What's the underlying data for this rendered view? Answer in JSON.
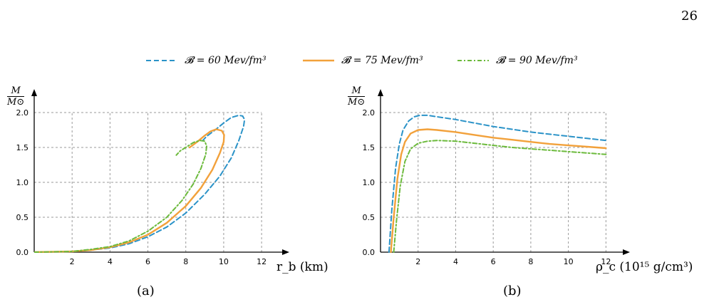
{
  "page_number": "26",
  "legend": [
    {
      "label": "𝓑 = 60 Mev/fm³",
      "color": "#2b93c8",
      "dash": "7,4"
    },
    {
      "label": "𝓑 = 75 Mev/fm³",
      "color": "#f2a13b",
      "dash": ""
    },
    {
      "label": "𝓑 = 90 Mev/fm³",
      "color": "#6cba3c",
      "dash": "6,3,2,3"
    }
  ],
  "chart_data": [
    {
      "type": "line",
      "caption": "(a)",
      "ylabel_num": "M",
      "ylabel_den": "M⊙",
      "xlabel": "r_b (km)",
      "xlim": [
        0,
        13
      ],
      "ylim": [
        0,
        2.2
      ],
      "xticks": [
        "2",
        "4",
        "6",
        "8",
        "10",
        "12"
      ],
      "yticks": [
        "0.0",
        "0.5",
        "1.0",
        "1.5",
        "2.0"
      ],
      "grid": true,
      "series": [
        {
          "name": "𝓑 = 60 Mev/fm³",
          "color": "#2b93c8",
          "dash": "7,4",
          "x": [
            0,
            2,
            3,
            4,
            5,
            6,
            7,
            8,
            9,
            9.8,
            10.4,
            10.8,
            11.05,
            11.1,
            11.0,
            10.8,
            10.4,
            10.0,
            9.5,
            9.1,
            8.9
          ],
          "y": [
            0,
            0.01,
            0.03,
            0.06,
            0.12,
            0.22,
            0.36,
            0.56,
            0.83,
            1.09,
            1.35,
            1.6,
            1.8,
            1.9,
            1.95,
            1.96,
            1.93,
            1.85,
            1.74,
            1.66,
            1.6
          ]
        },
        {
          "name": "𝓑 = 75 Mev/fm³",
          "color": "#f2a13b",
          "dash": "",
          "x": [
            0,
            2,
            3,
            4,
            5,
            6,
            7,
            8,
            8.8,
            9.4,
            9.8,
            10.0,
            10.02,
            9.9,
            9.6,
            9.3,
            9.0,
            8.6,
            8.2
          ],
          "y": [
            0,
            0.01,
            0.03,
            0.07,
            0.14,
            0.25,
            0.42,
            0.66,
            0.92,
            1.18,
            1.42,
            1.58,
            1.68,
            1.74,
            1.76,
            1.73,
            1.67,
            1.58,
            1.5
          ]
        },
        {
          "name": "𝓑 = 90 Mev/fm³",
          "color": "#6cba3c",
          "dash": "6,3,2,3",
          "x": [
            0,
            2,
            3,
            4,
            5,
            6,
            7,
            7.8,
            8.4,
            8.8,
            9.05,
            9.1,
            9.0,
            8.75,
            8.4,
            8.0,
            7.7,
            7.5
          ],
          "y": [
            0,
            0.01,
            0.04,
            0.08,
            0.16,
            0.3,
            0.5,
            0.74,
            0.98,
            1.2,
            1.4,
            1.52,
            1.59,
            1.6,
            1.57,
            1.5,
            1.45,
            1.39
          ]
        }
      ]
    },
    {
      "type": "line",
      "caption": "(b)",
      "ylabel_num": "M",
      "ylabel_den": "M⊙",
      "xlabel": "ρ_c (10¹⁵ g/cm³)",
      "xlim": [
        0,
        13
      ],
      "ylim": [
        0,
        2.2
      ],
      "xticks": [
        "2",
        "4",
        "6",
        "8",
        "10",
        "12"
      ],
      "yticks": [
        "0.0",
        "0.5",
        "1.0",
        "1.5",
        "2.0"
      ],
      "grid": true,
      "series": [
        {
          "name": "𝓑 = 60 Mev/fm³",
          "color": "#2b93c8",
          "dash": "7,4",
          "x": [
            0.45,
            0.6,
            0.8,
            1.0,
            1.2,
            1.5,
            1.8,
            2.1,
            2.5,
            3,
            4,
            5,
            6,
            7,
            8,
            9,
            10,
            11,
            12
          ],
          "y": [
            0,
            0.6,
            1.2,
            1.55,
            1.75,
            1.88,
            1.94,
            1.96,
            1.96,
            1.94,
            1.9,
            1.85,
            1.8,
            1.76,
            1.72,
            1.69,
            1.66,
            1.63,
            1.6
          ]
        },
        {
          "name": "𝓑 = 75 Mev/fm³",
          "color": "#f2a13b",
          "dash": "",
          "x": [
            0.55,
            0.7,
            0.9,
            1.1,
            1.3,
            1.6,
            2.0,
            2.5,
            3,
            4,
            5,
            6,
            7,
            8,
            9,
            10,
            11,
            12
          ],
          "y": [
            0,
            0.5,
            1.05,
            1.4,
            1.58,
            1.7,
            1.75,
            1.76,
            1.75,
            1.72,
            1.68,
            1.64,
            1.61,
            1.58,
            1.55,
            1.53,
            1.51,
            1.49
          ]
        },
        {
          "name": "𝓑 = 90 Mev/fm³",
          "color": "#6cba3c",
          "dash": "6,3,2,3",
          "x": [
            0.7,
            0.85,
            1.05,
            1.3,
            1.6,
            2.0,
            2.5,
            3,
            4,
            5,
            6,
            7,
            8,
            9,
            10,
            11,
            12
          ],
          "y": [
            0,
            0.45,
            0.95,
            1.3,
            1.48,
            1.56,
            1.59,
            1.6,
            1.59,
            1.56,
            1.53,
            1.5,
            1.48,
            1.46,
            1.44,
            1.42,
            1.4
          ]
        }
      ]
    }
  ]
}
